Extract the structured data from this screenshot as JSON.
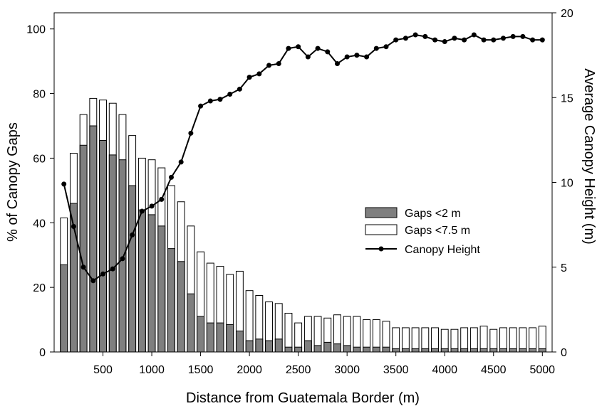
{
  "chart_data": {
    "type": "bar",
    "xlabel": "Distance from Guatemala Border (m)",
    "ylabel": "% of Canopy Gaps",
    "y2label": "Average Canopy Height (m)",
    "xlim": [
      0,
      5100
    ],
    "ylim": [
      0,
      105
    ],
    "y2lim": [
      0,
      20
    ],
    "xticks": [
      500,
      1000,
      1500,
      2000,
      2500,
      3000,
      3500,
      4000,
      4500,
      5000
    ],
    "yticks": [
      0,
      20,
      40,
      60,
      80,
      100
    ],
    "y2ticks": [
      0,
      5,
      10,
      15,
      20
    ],
    "grid": false,
    "legend_position": "right",
    "x": [
      100,
      200,
      300,
      400,
      500,
      600,
      700,
      800,
      900,
      1000,
      1100,
      1200,
      1300,
      1400,
      1500,
      1600,
      1700,
      1800,
      1900,
      2000,
      2100,
      2200,
      2300,
      2400,
      2500,
      2600,
      2700,
      2800,
      2900,
      3000,
      3100,
      3200,
      3300,
      3400,
      3500,
      3600,
      3700,
      3800,
      3900,
      4000,
      4100,
      4200,
      4300,
      4400,
      4500,
      4600,
      4700,
      4800,
      4900,
      5000
    ],
    "series": [
      {
        "name": "Gaps <2 m",
        "kind": "bar",
        "axis": "left",
        "color": "#7f7f7f",
        "values": [
          27,
          46,
          64,
          70,
          65.5,
          61,
          59.5,
          51.5,
          44,
          42.5,
          39,
          32,
          28,
          18,
          11,
          9,
          9,
          8.5,
          6.5,
          3.5,
          4,
          3.5,
          4,
          1.5,
          1.5,
          3.5,
          2,
          3,
          2.5,
          2,
          1.5,
          1.5,
          1.5,
          1.5,
          1,
          1,
          1,
          1,
          1,
          1,
          1,
          1,
          1,
          1,
          1,
          1,
          1,
          1,
          1,
          1
        ]
      },
      {
        "name": "Gaps <7.5 m",
        "kind": "bar",
        "axis": "left",
        "color": "#ffffff",
        "values": [
          41.5,
          61.5,
          73.5,
          78.5,
          78,
          77,
          73.5,
          67,
          60,
          59.5,
          57,
          51.5,
          46.5,
          39,
          31,
          27.5,
          26.5,
          24,
          25,
          19,
          17.5,
          15.5,
          15,
          12,
          9,
          11,
          11,
          10.5,
          11.5,
          11,
          11,
          10,
          10,
          9.5,
          7.5,
          7.5,
          7.5,
          7.5,
          7.5,
          7,
          7,
          7.5,
          7.5,
          8,
          7,
          7.5,
          7.5,
          7.5,
          7.5,
          8
        ]
      },
      {
        "name": "Canopy Height",
        "kind": "line",
        "axis": "right",
        "color": "#000000",
        "values": [
          9.9,
          7.4,
          5,
          4.2,
          4.6,
          4.9,
          5.5,
          6.9,
          8.3,
          8.6,
          9,
          10.3,
          11.2,
          12.9,
          14.5,
          14.8,
          14.9,
          15.2,
          15.5,
          16.2,
          16.4,
          16.9,
          17,
          17.9,
          18,
          17.4,
          17.9,
          17.7,
          17,
          17.4,
          17.5,
          17.4,
          17.9,
          18,
          18.4,
          18.5,
          18.7,
          18.6,
          18.4,
          18.3,
          18.5,
          18.4,
          18.7,
          18.4,
          18.4,
          18.5,
          18.6,
          18.6,
          18.4,
          18.4
        ]
      }
    ]
  }
}
